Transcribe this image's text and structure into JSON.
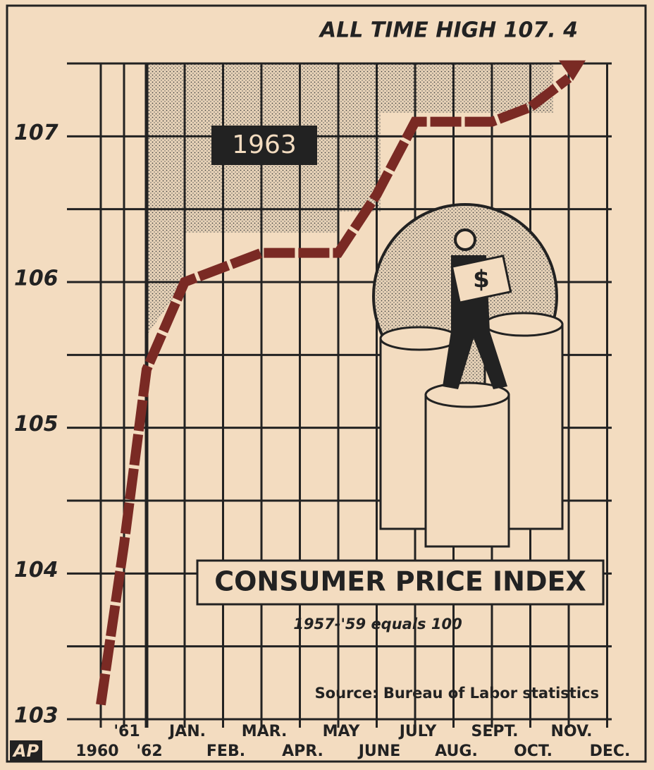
{
  "chart_data": {
    "type": "line",
    "title": "CONSUMER PRICE INDEX",
    "subtitle": "1957-'59 equals 100",
    "source": "Source: Bureau of Labor statistics",
    "annotation": "ALL TIME HIGH 107. 4",
    "highlight_label": "1963",
    "logo": "AP",
    "categories": [
      "1960",
      "'61",
      "'62",
      "JAN.",
      "FEB.",
      "MAR.",
      "APR.",
      "MAY",
      "JUNE",
      "JULY",
      "AUG.",
      "SEPT.",
      "OCT.",
      "NOV.",
      "DEC."
    ],
    "values": [
      103.1,
      104.2,
      105.4,
      106.0,
      106.1,
      106.2,
      106.2,
      106.2,
      106.6,
      107.1,
      107.1,
      107.1,
      107.2,
      107.4,
      null
    ],
    "color": "#7a2a24",
    "ylim": [
      103,
      107.5
    ],
    "yticks": [
      103,
      104,
      105,
      106,
      107
    ],
    "grid": true
  }
}
